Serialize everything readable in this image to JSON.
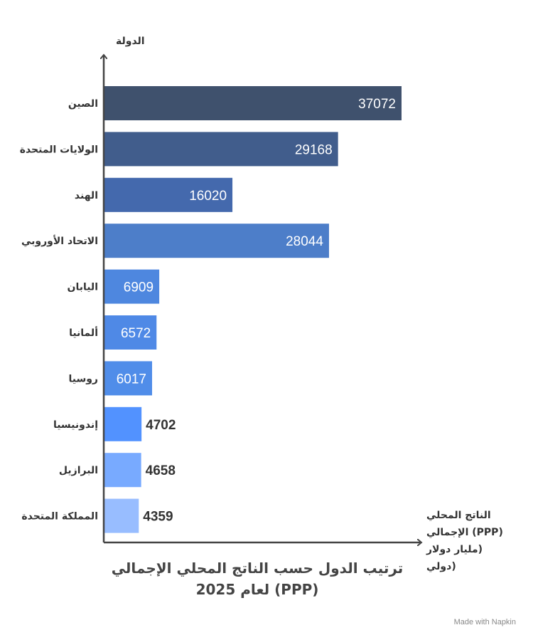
{
  "chart_data": {
    "type": "bar",
    "orientation": "horizontal",
    "title_lines": [
      "ترتيب الدول حسب الناتج المحلي الإجمالي",
      "لعام 2025 (PPP)"
    ],
    "ylabel": "الدولة",
    "xlabel_lines": [
      "الناتج المحلي",
      "الإجمالي (PPP)",
      "مليار دولار)",
      "دولي)"
    ],
    "categories": [
      "الصين",
      "الولايات المتحدة",
      "الهند",
      "الاتحاد الأوروبي",
      "اليابان",
      "ألمانيا",
      "روسيا",
      "إندونيسيا",
      "البرازيل",
      "المملكة المتحدة"
    ],
    "values": [
      37072,
      29168,
      16020,
      28044,
      6909,
      6572,
      6017,
      4702,
      4658,
      4359
    ],
    "value_labels": [
      "37072",
      "29168",
      "16020",
      "28044",
      "6909",
      "6572",
      "6017",
      "4702",
      "4658",
      "4359"
    ],
    "xlim": [
      0,
      42000
    ],
    "colors": [
      "#3f516d",
      "#415d8c",
      "#4469ad",
      "#4d7ec9",
      "#4e87df",
      "#4f89e6",
      "#508de9",
      "#5292ff",
      "#78aaff",
      "#98bdff"
    ],
    "grid": false,
    "legend": "none"
  },
  "credit": "Made with Napkin"
}
